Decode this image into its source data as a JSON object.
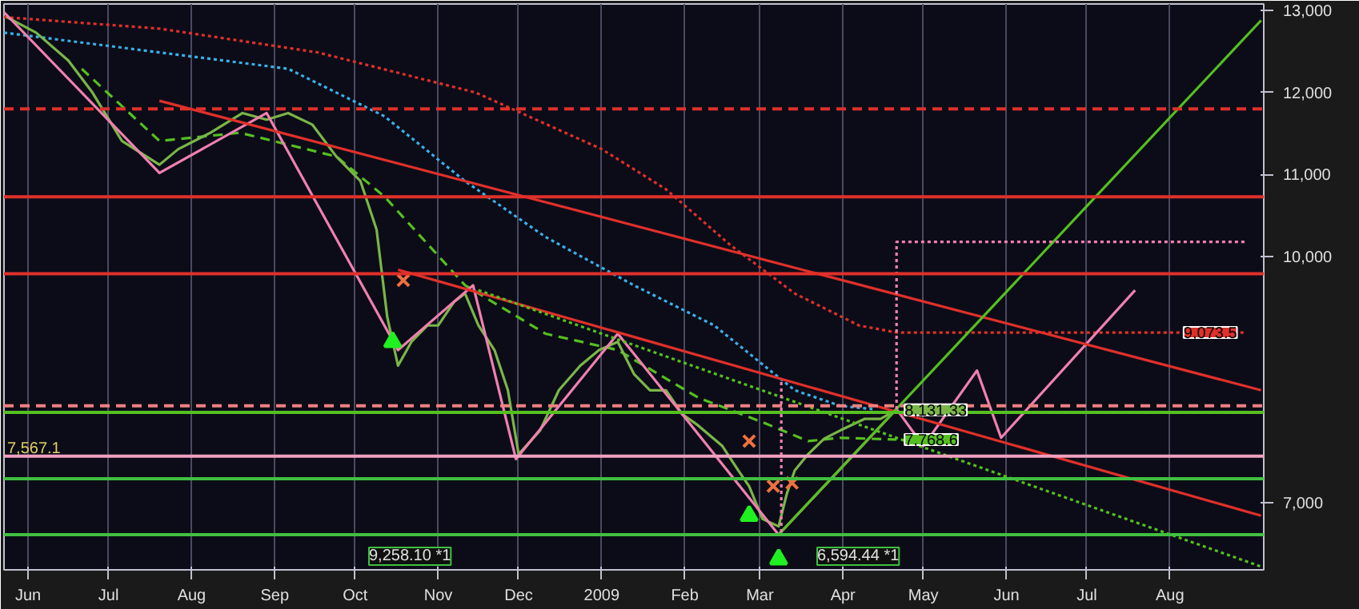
{
  "chart_data": {
    "type": "line",
    "xlim": [
      "2008-05-23",
      "2009-09-05"
    ],
    "ylim": [
      6180,
      13080
    ],
    "xticks": [
      {
        "value": "2008-06-01",
        "label": "Jun"
      },
      {
        "value": "2008-07-01",
        "label": "Jul"
      },
      {
        "value": "2008-08-01",
        "label": "Aug"
      },
      {
        "value": "2008-09-01",
        "label": "Sep"
      },
      {
        "value": "2008-10-01",
        "label": "Oct"
      },
      {
        "value": "2008-11-01",
        "label": "Nov"
      },
      {
        "value": "2008-12-01",
        "label": "Dec"
      },
      {
        "value": "2009-01-01",
        "label": "2009"
      },
      {
        "value": "2009-02-01",
        "label": "Feb"
      },
      {
        "value": "2009-03-01",
        "label": "Mar"
      },
      {
        "value": "2009-04-01",
        "label": "Apr"
      },
      {
        "value": "2009-05-01",
        "label": "May"
      },
      {
        "value": "2009-06-01",
        "label": "Jun"
      },
      {
        "value": "2009-07-01",
        "label": "Jul"
      },
      {
        "value": "2009-08-01",
        "label": "Aug"
      }
    ],
    "yticks": [
      {
        "value": 7000,
        "label": "7,000"
      },
      {
        "value": 10000,
        "label": "10,000"
      },
      {
        "value": 11000,
        "label": "11,000"
      },
      {
        "value": 12000,
        "label": "12,000"
      },
      {
        "value": 13000,
        "label": "13,000"
      }
    ],
    "grid": "x",
    "series": [
      {
        "color": "#e0302a",
        "line_style": "dotted",
        "x": [
          "2008-05-23",
          "2008-07-20",
          "2008-09-17",
          "2008-11-15",
          "2009-01-01",
          "2009-01-25",
          "2009-02-18",
          "2009-03-14",
          "2009-04-07",
          "2009-04-21",
          "2009-08-29"
        ],
        "values": [
          12920,
          12780,
          12490,
          12000,
          11310,
          10820,
          10140,
          9550,
          9160,
          9073.5,
          9073.5
        ],
        "value_labels": [
          null,
          null,
          null,
          null,
          null,
          null,
          null,
          null,
          null,
          null,
          "9,073.5"
        ]
      },
      {
        "color": "#3bb0e8",
        "line_style": "dotted",
        "x": [
          "2008-05-23",
          "2008-07-20",
          "2008-09-06",
          "2008-10-12",
          "2008-11-11",
          "2008-12-11",
          "2009-01-13",
          "2009-02-12",
          "2009-03-14",
          "2009-03-31",
          "2009-04-12"
        ],
        "values": [
          12730,
          12490,
          12290,
          11710,
          10920,
          10240,
          9650,
          9160,
          8370,
          8180,
          8140
        ]
      },
      {
        "color": "#55c020",
        "line_style": "dashed",
        "x": [
          "2008-06-21",
          "2008-07-20",
          "2008-08-19",
          "2008-09-24",
          "2008-10-12",
          "2008-11-11",
          "2008-12-11",
          "2009-01-07",
          "2009-02-06",
          "2009-03-02",
          "2009-03-19",
          "2009-03-31",
          "2009-04-21"
        ],
        "values": [
          12290,
          11410,
          11510,
          11220,
          10730,
          9650,
          9060,
          8860,
          8280,
          7980,
          7750,
          7790,
          7768.6
        ],
        "value_labels": [
          null,
          null,
          null,
          null,
          null,
          null,
          null,
          null,
          null,
          null,
          null,
          null,
          "7,768.6"
        ]
      },
      {
        "color": "#7ab648",
        "line_style": "solid",
        "x": [
          "2008-05-24",
          "2008-06-04",
          "2008-06-16",
          "2008-06-25",
          "2008-07-06",
          "2008-07-20",
          "2008-07-27",
          "2008-08-08",
          "2008-08-20",
          "2008-08-29",
          "2008-09-06",
          "2008-09-15",
          "2008-09-24",
          "2008-10-03",
          "2008-10-09",
          "2008-10-13",
          "2008-10-17",
          "2008-10-22",
          "2008-10-28",
          "2008-11-01",
          "2008-11-07",
          "2008-11-11",
          "2008-11-16",
          "2008-11-22",
          "2008-11-27",
          "2008-12-01",
          "2008-12-09",
          "2008-12-16",
          "2008-12-24",
          "2008-12-31",
          "2009-01-07",
          "2009-01-13",
          "2009-01-19",
          "2009-01-25",
          "2009-01-31",
          "2009-02-06",
          "2009-02-15",
          "2009-02-21",
          "2009-02-25",
          "2009-03-02",
          "2009-03-08",
          "2009-03-11",
          "2009-03-14",
          "2009-03-19",
          "2009-03-25",
          "2009-03-31",
          "2009-04-09",
          "2009-04-15",
          "2009-04-21"
        ],
        "values": [
          12920,
          12730,
          12390,
          12000,
          11410,
          11120,
          11310,
          11510,
          11750,
          11670,
          11750,
          11610,
          11220,
          10920,
          10330,
          9260,
          8670,
          8960,
          9160,
          9160,
          9450,
          9550,
          9160,
          8860,
          8370,
          7590,
          7880,
          8370,
          8670,
          8860,
          8960,
          8570,
          8370,
          8370,
          8080,
          7940,
          7690,
          7390,
          7200,
          6800,
          6710,
          7100,
          7390,
          7590,
          7780,
          7880,
          8020,
          8020,
          8131.33
        ],
        "value_labels": [
          null,
          null,
          null,
          null,
          null,
          null,
          null,
          null,
          null,
          null,
          null,
          null,
          null,
          null,
          null,
          null,
          null,
          null,
          null,
          null,
          null,
          null,
          null,
          null,
          null,
          null,
          null,
          null,
          null,
          null,
          null,
          null,
          null,
          null,
          null,
          null,
          null,
          null,
          null,
          null,
          null,
          null,
          null,
          null,
          null,
          null,
          null,
          null,
          "8,131.33"
        ]
      },
      {
        "color": "#f080b0",
        "line_style": "solid",
        "x": [
          "2008-05-23",
          "2008-07-20",
          "2008-08-29",
          "2008-10-17",
          "2008-11-14",
          "2008-11-30",
          "2009-01-07",
          "2009-03-08",
          "2009-04-21",
          "2009-05-01",
          "2009-05-21",
          "2009-05-30",
          "2009-07-19"
        ],
        "values": [
          12980,
          11020,
          11750,
          8860,
          9650,
          7530,
          9060,
          6610,
          8140,
          7690,
          8610,
          7790,
          9590
        ]
      },
      {
        "color": "#e0302a",
        "line_style": "solid",
        "x": [
          "2008-07-20",
          "2009-09-04"
        ],
        "values": [
          11900,
          8370
        ]
      },
      {
        "color": "#e0302a",
        "line_style": "solid",
        "x": [
          "2008-10-17",
          "2009-09-04"
        ],
        "values": [
          9840,
          6840
        ]
      },
      {
        "color": "#55c020",
        "line_style": "dotted",
        "x": [
          "2008-11-16",
          "2009-09-04"
        ],
        "values": [
          9590,
          6220
        ]
      },
      {
        "color": "#55c020",
        "line_style": "solid",
        "x": [
          "2009-03-08",
          "2009-09-04"
        ],
        "values": [
          6610,
          12880
        ]
      },
      {
        "color": "#f080b0",
        "line_style": "dotted",
        "x": [
          "2009-03-09",
          "2009-03-09"
        ],
        "values": [
          8470,
          6610
        ]
      },
      {
        "color": "#f080b0",
        "line_style": "dotted",
        "x": [
          "2009-04-21",
          "2009-04-21",
          "2009-08-29"
        ],
        "values": [
          8140,
          10180,
          10180
        ]
      },
      {
        "type": "scatter",
        "marker": "triangle",
        "color": "#20f020",
        "x": [
          "2008-10-15",
          "2009-02-25",
          "2009-03-08"
        ],
        "values": [
          8960,
          6840,
          6310
        ]
      },
      {
        "type": "scatter",
        "marker": "cross",
        "color": "#f07040",
        "x": [
          "2008-10-19",
          "2009-02-25",
          "2009-03-06",
          "2009-03-13"
        ],
        "values": [
          9710,
          7750,
          7200,
          7240
        ]
      }
    ],
    "ref_lines": [
      {
        "axis": "y",
        "value": 11800,
        "color": "#e0302a",
        "line_style": "dashed"
      },
      {
        "axis": "y",
        "value": 10730,
        "color": "#e0302a",
        "line_style": "solid"
      },
      {
        "axis": "y",
        "value": 9790,
        "color": "#e0302a",
        "line_style": "solid"
      },
      {
        "axis": "y",
        "value": 8180,
        "color": "#f08080",
        "line_style": "dashed"
      },
      {
        "axis": "y",
        "value": 8100,
        "color": "#55c020",
        "line_style": "solid"
      },
      {
        "axis": "y",
        "value": 7567.1,
        "color": "#f0a0c0",
        "line_style": "solid",
        "label": "7,567.1"
      },
      {
        "axis": "y",
        "value": 7290,
        "color": "#40c040",
        "line_style": "solid"
      },
      {
        "axis": "y",
        "value": 6610,
        "color": "#40c040",
        "line_style": "solid"
      }
    ],
    "annotations": [
      "9,258.10 *1",
      "6,594.44 *1"
    ]
  }
}
